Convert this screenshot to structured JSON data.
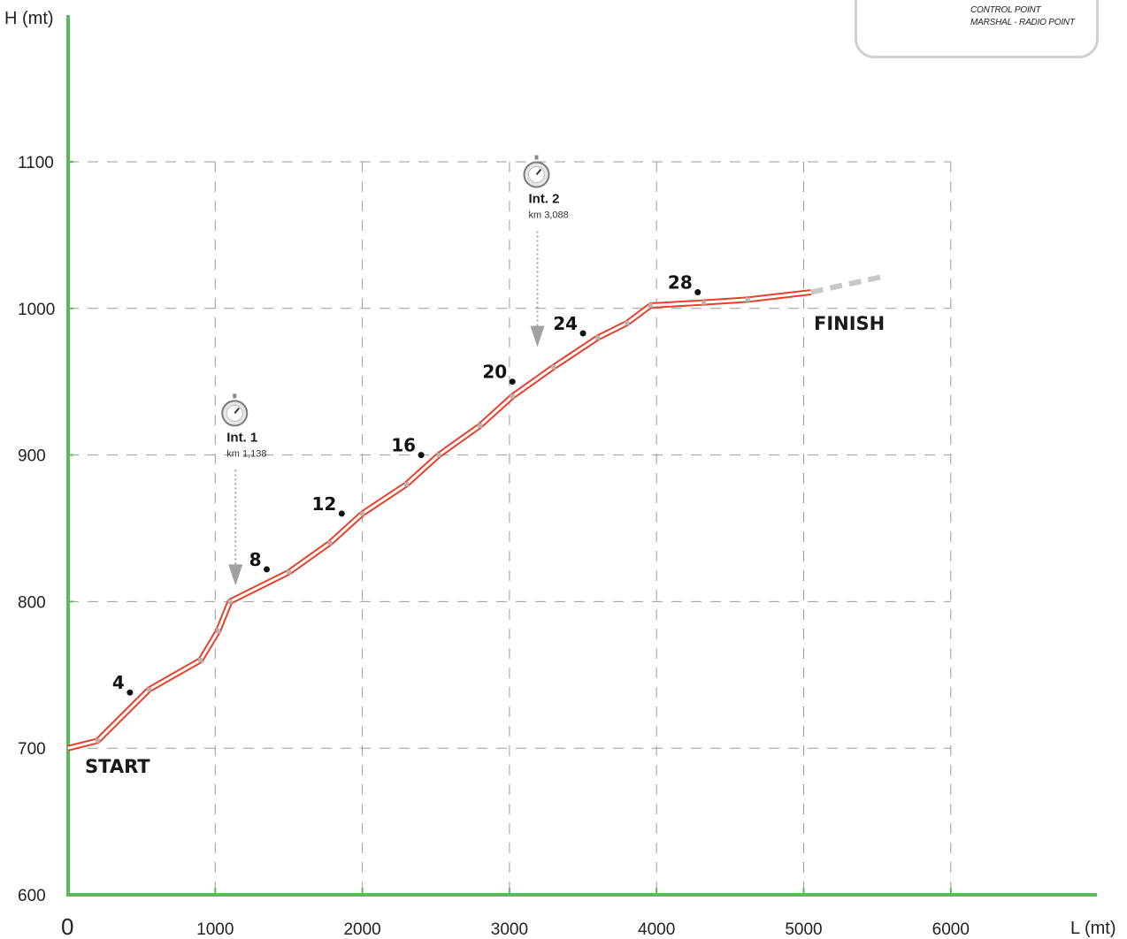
{
  "chart_data": {
    "type": "line",
    "title": "",
    "xlabel": "L (mt)",
    "ylabel": "H (mt)",
    "xlim": [
      0,
      6000
    ],
    "ylim": [
      600,
      1200
    ],
    "x_ticks": [
      0,
      1000,
      2000,
      3000,
      4000,
      5000,
      6000
    ],
    "y_ticks": [
      600,
      700,
      800,
      900,
      1000,
      1100
    ],
    "grid_x": [
      1000,
      2000,
      3000,
      4000,
      5000,
      6000
    ],
    "grid_y": [
      700,
      800,
      900,
      1000,
      1100
    ],
    "grid": true,
    "series": [
      {
        "name": "",
        "x": [
          0,
          200,
          550,
          900,
          1020,
          1100,
          1500,
          1780,
          2000,
          2300,
          2520,
          2800,
          3020,
          3300,
          3600,
          3800,
          3960,
          4320,
          4620,
          5050
        ],
        "y": [
          700,
          705,
          740,
          760,
          780,
          800,
          820,
          840,
          860,
          880,
          900,
          920,
          940,
          960,
          980,
          990,
          1002,
          1004,
          1006,
          1011
        ]
      }
    ],
    "extension": {
      "x": [
        5050,
        5550
      ],
      "y": [
        1011,
        1022
      ]
    },
    "markers": [
      {
        "label": "4",
        "x": 420,
        "y": 738
      },
      {
        "label": "8",
        "x": 1350,
        "y": 822
      },
      {
        "label": "12",
        "x": 1860,
        "y": 860
      },
      {
        "label": "16",
        "x": 2400,
        "y": 900
      },
      {
        "label": "20",
        "x": 3020,
        "y": 950
      },
      {
        "label": "24",
        "x": 3500,
        "y": 983
      },
      {
        "label": "28",
        "x": 4280,
        "y": 1011
      }
    ],
    "annotations": {
      "start": {
        "label": "START",
        "x": 0,
        "y": 700
      },
      "finish": {
        "label": "FINISH",
        "x": 5050,
        "y": 1011
      },
      "intermediates": [
        {
          "title": "Int. 1",
          "distance": "km 1,138",
          "x": 1138,
          "y": 800
        },
        {
          "title": "Int. 2",
          "distance": "km 3,088",
          "x": 3190,
          "y": 970
        }
      ]
    }
  },
  "legend": {
    "items": [
      "CONTROL POINT",
      "MARSHAL - RADIO POINT"
    ]
  },
  "colors": {
    "axis": "#5cb85c",
    "grid": "#9a9a9a",
    "profile": "#e8402a",
    "profile_node": "#b5b5b5",
    "extension": "#c8c8c8",
    "marker": "#111111"
  }
}
